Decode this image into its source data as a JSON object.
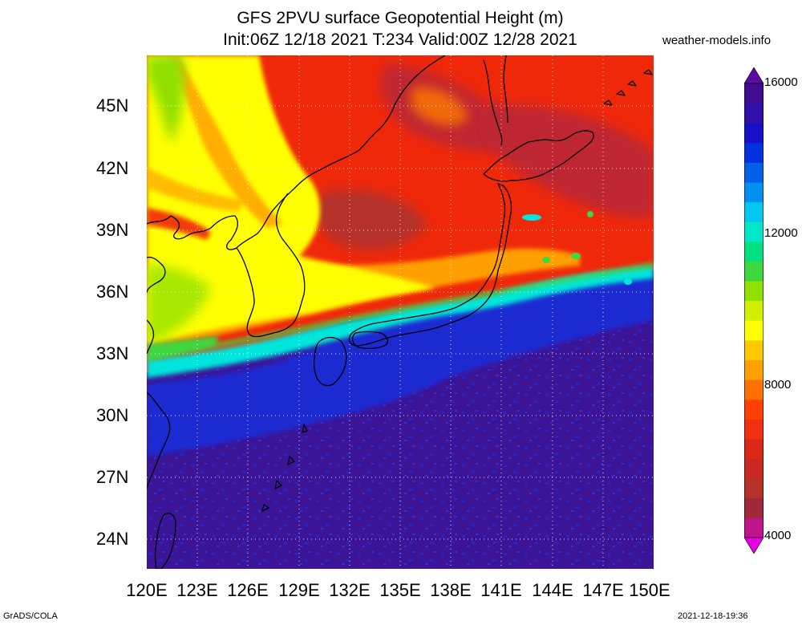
{
  "title_line1": "GFS 2PVU surface Geopotential Height (m)",
  "title_line2": "Init:06Z 12/18 2021 T:234 Valid:00Z 12/28 2021",
  "site": "weather-models.info",
  "lat_labels": [
    "45N",
    "42N",
    "39N",
    "36N",
    "33N",
    "30N",
    "27N",
    "24N"
  ],
  "lon_labels": [
    "120E",
    "123E",
    "126E",
    "129E",
    "132E",
    "135E",
    "138E",
    "141E",
    "144E",
    "147E",
    "150E"
  ],
  "colorbar": {
    "labels": [
      "16000",
      "12000",
      "8000",
      "4000"
    ],
    "colors": [
      "#e400e4",
      "#c0158a",
      "#a0283c",
      "#b4322a",
      "#c82820",
      "#dc2818",
      "#f03010",
      "#ff4000",
      "#ff7000",
      "#ffa000",
      "#ffc800",
      "#ffff00",
      "#d0f000",
      "#90e000",
      "#40d840",
      "#00e080",
      "#00e8c8",
      "#00c8f0",
      "#0090f0",
      "#0060e8",
      "#0030e0",
      "#1810c8",
      "#3010a8",
      "#400c90",
      "#5a0aa0"
    ]
  },
  "field_colors": {
    "deep_blue": "#3c1496",
    "blue": "#1e2ad2",
    "cyan": "#00e6dc",
    "yellow": "#ffff00",
    "orange": "#ffa000",
    "red": "#f0280a",
    "dark_red": "#be2832"
  },
  "footer_left": "GrADS/COLA",
  "footer_right": "2021-12-18-19:36"
}
